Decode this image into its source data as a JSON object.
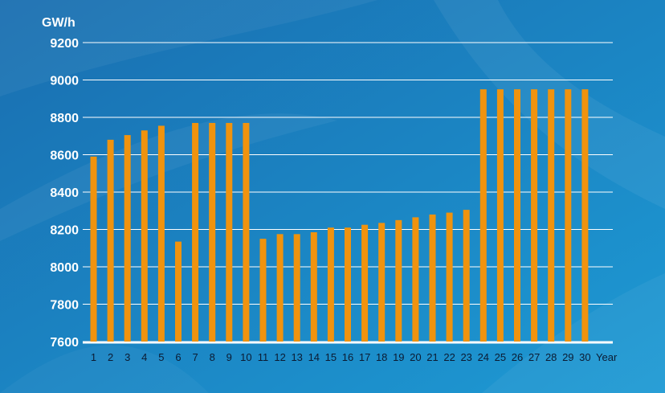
{
  "chart_data": {
    "type": "bar",
    "ylabel": "GW/h",
    "xlabel": "Year",
    "ylim": [
      7600,
      9200
    ],
    "yticks": [
      7600,
      7800,
      8000,
      8200,
      8400,
      8600,
      8800,
      9000,
      9200
    ],
    "grid": true,
    "categories": [
      "1",
      "2",
      "3",
      "4",
      "5",
      "6",
      "7",
      "8",
      "9",
      "10",
      "11",
      "12",
      "13",
      "14",
      "15",
      "16",
      "17",
      "18",
      "19",
      "20",
      "21",
      "22",
      "23",
      "24",
      "25",
      "26",
      "27",
      "28",
      "29",
      "30"
    ],
    "values": [
      8590,
      8680,
      8705,
      8730,
      8755,
      8135,
      8770,
      8770,
      8770,
      8770,
      8150,
      8175,
      8175,
      8185,
      8210,
      8210,
      8225,
      8235,
      8250,
      8265,
      8280,
      8290,
      8305,
      8950,
      8950,
      8950,
      8950,
      8950,
      8950,
      8950
    ],
    "colors": {
      "bar": "#f0930e",
      "grid": "#ffffff",
      "axis": "#ffffff",
      "text": "#ffffff",
      "tick_text": "#0b1b33"
    }
  }
}
